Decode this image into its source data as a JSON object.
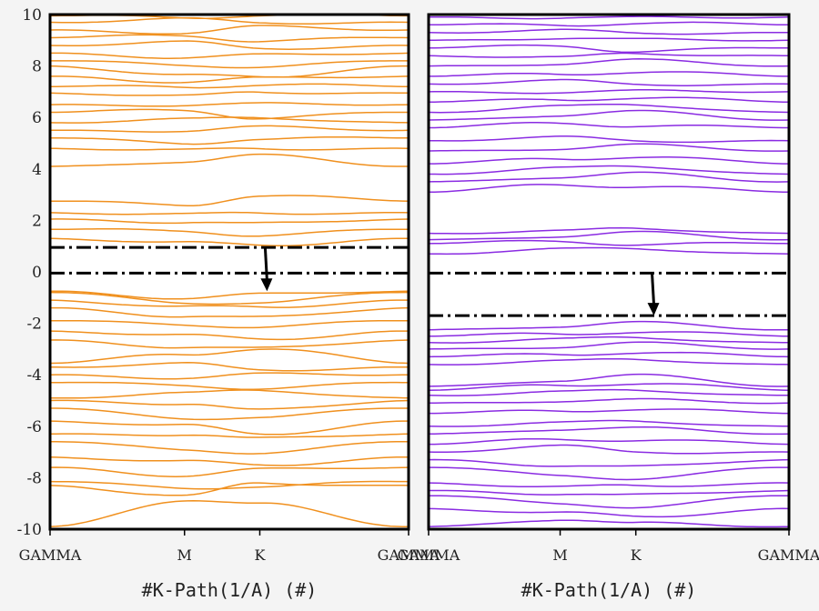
{
  "chart_data": [
    {
      "type": "line",
      "panel": "left",
      "color": "#f0901e",
      "xlabel": "#K-Path(1/A) (#)",
      "ylim": [
        -10,
        10
      ],
      "yticks": [
        "-10",
        "-8",
        "-6",
        "-4",
        "-2",
        "0",
        "2",
        "4",
        "6",
        "8",
        "10"
      ],
      "kpoints": [
        {
          "label": "GAMMA",
          "x": 0.0
        },
        {
          "label": "M",
          "x": 0.375
        },
        {
          "label": "K",
          "x": 0.585
        },
        {
          "label": "GAMMA",
          "x": 1.0
        }
      ],
      "fermi_lines": [
        0.95,
        -0.05
      ],
      "arrow": {
        "x": 0.6,
        "from": 0.95,
        "to": -0.75
      },
      "bands": [
        {
          "G": -9.9,
          "M": -8.85,
          "K": -9.05,
          "shape": "cross"
        },
        {
          "G": -8.3,
          "M": -8.75,
          "K": -8.2,
          "shape": "cross"
        },
        {
          "G": -8.15,
          "M": -8.4,
          "K": -8.3
        },
        {
          "G": -7.6,
          "M": -7.9,
          "K": -7.7
        },
        {
          "G": -7.2,
          "M": -7.4,
          "K": -7.5
        },
        {
          "G": -6.6,
          "M": -6.9,
          "K": -7.0
        },
        {
          "G": -6.3,
          "M": -6.3,
          "K": -6.5
        },
        {
          "G": -5.8,
          "M": -6.0,
          "K": -6.3
        },
        {
          "G": -5.3,
          "M": -5.7,
          "K": -5.6
        },
        {
          "G": -5.0,
          "M": -5.1,
          "K": -5.4
        },
        {
          "G": -4.9,
          "M": -4.75,
          "K": -4.6
        },
        {
          "G": -4.3,
          "M": -4.4,
          "K": -4.5
        },
        {
          "G": -4.0,
          "M": -4.1,
          "K": -4.0
        },
        {
          "G": -3.7,
          "M": -3.6,
          "K": -3.8
        },
        {
          "G": -3.55,
          "M": -3.2,
          "K": -2.95
        },
        {
          "G": -2.65,
          "M": -2.9,
          "K": -3.0
        },
        {
          "G": -2.3,
          "M": -2.5,
          "K": -2.6
        },
        {
          "G": -1.9,
          "M": -2.05,
          "K": -2.1
        },
        {
          "G": -1.4,
          "M": -1.7,
          "K": -1.8
        },
        {
          "G": -1.1,
          "M": -1.4,
          "K": -1.35
        },
        {
          "G": -0.8,
          "M": -1.2,
          "K": -1.15
        },
        {
          "G": -0.75,
          "M": -1.0,
          "K": -0.9
        },
        {
          "G": 1.3,
          "M": 1.1,
          "K": 1.05
        },
        {
          "G": 1.65,
          "M": 1.6,
          "K": 1.45
        },
        {
          "G": 2.05,
          "M": 1.95,
          "K": 1.85
        },
        {
          "G": 2.3,
          "M": 2.2,
          "K": 2.3
        },
        {
          "G": 2.75,
          "M": 2.6,
          "K": 3.0
        },
        {
          "G": 4.1,
          "M": 4.3,
          "K": 4.5
        },
        {
          "G": 4.8,
          "M": 4.7,
          "K": 4.8
        },
        {
          "G": 5.2,
          "M": 5.0,
          "K": 5.2
        },
        {
          "G": 5.5,
          "M": 5.5,
          "K": 5.6
        },
        {
          "G": 5.8,
          "M": 5.9,
          "K": 6.0
        },
        {
          "G": 6.2,
          "M": 6.3,
          "K": 6.0
        },
        {
          "G": 6.5,
          "M": 6.5,
          "K": 6.5
        },
        {
          "G": 6.95,
          "M": 6.8,
          "K": 7.0
        },
        {
          "G": 7.2,
          "M": 7.2,
          "K": 7.3
        },
        {
          "G": 7.6,
          "M": 7.4,
          "K": 7.5
        },
        {
          "G": 8.0,
          "M": 7.6,
          "K": 7.6
        },
        {
          "G": 8.2,
          "M": 8.05,
          "K": 8.0
        },
        {
          "G": 8.5,
          "M": 8.35,
          "K": 8.4
        },
        {
          "G": 8.8,
          "M": 8.9,
          "K": 8.7
        },
        {
          "G": 9.1,
          "M": 9.2,
          "K": 9.0
        },
        {
          "G": 9.4,
          "M": 9.3,
          "K": 9.5
        },
        {
          "G": 9.7,
          "M": 9.8,
          "K": 9.7
        },
        {
          "G": 9.95,
          "M": 9.9,
          "K": 10.0
        }
      ]
    },
    {
      "type": "line",
      "panel": "right",
      "color": "#8a2be2",
      "xlabel": "#K-Path(1/A) (#)",
      "ylim": [
        -10,
        10
      ],
      "yticks": [],
      "kpoints": [
        {
          "label": "GAMMA",
          "x": 0.0
        },
        {
          "label": "M",
          "x": 0.365
        },
        {
          "label": "K",
          "x": 0.575
        },
        {
          "label": "GAMMA",
          "x": 1.0
        }
      ],
      "fermi_lines": [
        -0.05,
        -1.7
      ],
      "arrow": {
        "x": 0.62,
        "from": -0.05,
        "to": -1.7
      },
      "bands": [
        {
          "G": -9.9,
          "M": -9.6,
          "K": -9.8
        },
        {
          "G": -9.2,
          "M": -9.4,
          "K": -9.5
        },
        {
          "G": -8.7,
          "M": -9.0,
          "K": -9.1
        },
        {
          "G": -8.5,
          "M": -8.6,
          "K": -8.7
        },
        {
          "G": -8.2,
          "M": -8.4,
          "K": -8.3
        },
        {
          "G": -7.6,
          "M": -7.9,
          "K": -8.0
        },
        {
          "G": -7.3,
          "M": -7.5,
          "K": -7.6
        },
        {
          "G": -7.0,
          "M": -6.8,
          "K": -7.0
        },
        {
          "G": -6.7,
          "M": -6.5,
          "K": -6.5
        },
        {
          "G": -6.3,
          "M": -6.1,
          "K": -6.1
        },
        {
          "G": -6.0,
          "M": -5.9,
          "K": -5.8
        },
        {
          "G": -5.5,
          "M": -5.4,
          "K": -5.3
        },
        {
          "G": -5.1,
          "M": -5.0,
          "K": -5.0
        },
        {
          "G": -4.8,
          "M": -4.7,
          "K": -4.6
        },
        {
          "G": -4.6,
          "M": -4.4,
          "K": -4.3
        },
        {
          "G": -4.45,
          "M": -4.2,
          "K": -4.05
        },
        {
          "G": -3.6,
          "M": -3.5,
          "K": -3.4
        },
        {
          "G": -3.3,
          "M": -3.2,
          "K": -3.1
        },
        {
          "G": -3.0,
          "M": -2.9,
          "K": -2.8
        },
        {
          "G": -2.75,
          "M": -2.65,
          "K": -2.55
        },
        {
          "G": -2.5,
          "M": -2.4,
          "K": -2.3
        },
        {
          "G": -2.25,
          "M": -2.1,
          "K": -2.0
        },
        {
          "G": 0.7,
          "M": 0.85,
          "K": 0.9
        },
        {
          "G": 1.1,
          "M": 1.2,
          "K": 1.1
        },
        {
          "G": 1.25,
          "M": 1.4,
          "K": 1.5
        },
        {
          "G": 1.5,
          "M": 1.55,
          "K": 1.7
        },
        {
          "G": 3.1,
          "M": 3.4,
          "K": 3.35
        },
        {
          "G": 3.5,
          "M": 3.7,
          "K": 3.8
        },
        {
          "G": 3.8,
          "M": 4.0,
          "K": 4.1
        },
        {
          "G": 4.2,
          "M": 4.4,
          "K": 4.5
        },
        {
          "G": 4.7,
          "M": 4.8,
          "K": 4.9
        },
        {
          "G": 5.1,
          "M": 5.2,
          "K": 5.1
        },
        {
          "G": 5.6,
          "M": 5.8,
          "K": 5.7
        },
        {
          "G": 5.9,
          "M": 6.1,
          "K": 6.2
        },
        {
          "G": 6.2,
          "M": 6.4,
          "K": 6.5
        },
        {
          "G": 6.6,
          "M": 6.7,
          "K": 6.8
        },
        {
          "G": 7.0,
          "M": 7.0,
          "K": 7.0
        },
        {
          "G": 7.3,
          "M": 7.4,
          "K": 7.3
        },
        {
          "G": 7.6,
          "M": 7.7,
          "K": 7.8
        },
        {
          "G": 8.0,
          "M": 8.1,
          "K": 8.2
        },
        {
          "G": 8.4,
          "M": 8.3,
          "K": 8.5
        },
        {
          "G": 8.7,
          "M": 8.8,
          "K": 8.6
        },
        {
          "G": 9.0,
          "M": 9.1,
          "K": 9.0
        },
        {
          "G": 9.3,
          "M": 9.35,
          "K": 9.3
        },
        {
          "G": 9.6,
          "M": 9.6,
          "K": 9.7
        },
        {
          "G": 9.9,
          "M": 9.9,
          "K": 9.85
        }
      ]
    }
  ]
}
